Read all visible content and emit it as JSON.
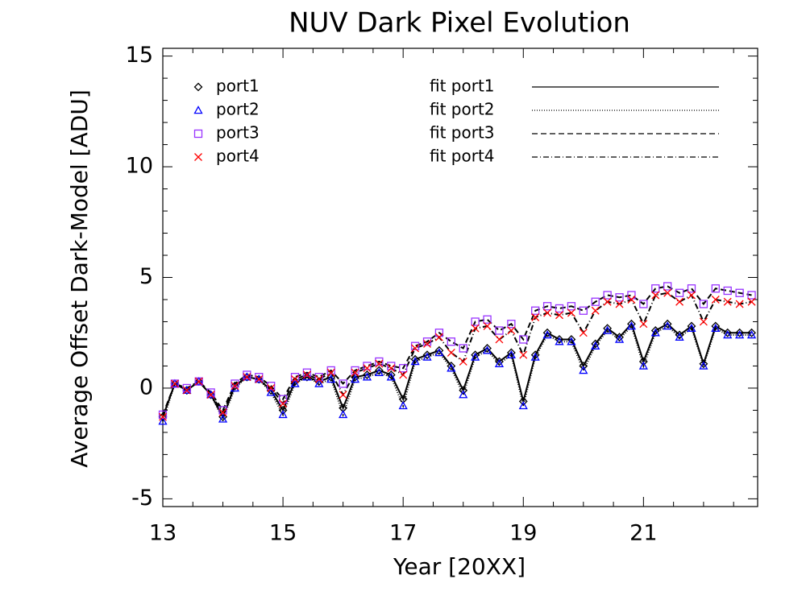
{
  "chart_data": {
    "type": "scatter",
    "title": "NUV Dark Pixel Evolution",
    "xlabel": "Year [20XX]",
    "ylabel": "Average Offset Dark-Model [ADU]",
    "xlim": [
      13,
      22.9
    ],
    "ylim": [
      -5.35,
      15.35
    ],
    "xticks": [
      13,
      15,
      17,
      19,
      21
    ],
    "yticks": [
      -5,
      0,
      5,
      10,
      15
    ],
    "minor_ticks": {
      "x": 4,
      "y": 5
    },
    "x": [
      13.0,
      13.2,
      13.4,
      13.6,
      13.8,
      14.0,
      14.2,
      14.4,
      14.6,
      14.8,
      15.0,
      15.2,
      15.4,
      15.6,
      15.8,
      16.0,
      16.2,
      16.4,
      16.6,
      16.8,
      17.0,
      17.2,
      17.4,
      17.6,
      17.8,
      18.0,
      18.2,
      18.4,
      18.6,
      18.8,
      19.0,
      19.2,
      19.4,
      19.6,
      19.8,
      20.0,
      20.2,
      20.4,
      20.6,
      20.8,
      21.0,
      21.2,
      21.4,
      21.6,
      21.8,
      22.0,
      22.2,
      22.4,
      22.6,
      22.8
    ],
    "series": [
      {
        "name": "port1",
        "marker": "diamond",
        "color": "#000000",
        "values": [
          -1.3,
          0.2,
          -0.1,
          0.3,
          -0.3,
          -1.3,
          0.1,
          0.5,
          0.4,
          -0.1,
          -1.0,
          0.3,
          0.5,
          0.3,
          0.5,
          -0.9,
          0.5,
          0.6,
          0.8,
          0.6,
          -0.5,
          1.3,
          1.5,
          1.7,
          1.0,
          -0.1,
          1.5,
          1.8,
          1.2,
          1.6,
          -0.6,
          1.5,
          2.5,
          2.2,
          2.2,
          1.0,
          2.0,
          2.7,
          2.3,
          2.9,
          1.2,
          2.6,
          2.9,
          2.4,
          2.8,
          1.1,
          2.8,
          2.5,
          2.5,
          2.5
        ]
      },
      {
        "name": "port2",
        "marker": "triangle",
        "color": "#0000ff",
        "values": [
          -1.5,
          0.2,
          -0.1,
          0.3,
          -0.3,
          -1.4,
          0.0,
          0.5,
          0.4,
          -0.2,
          -1.2,
          0.2,
          0.5,
          0.2,
          0.4,
          -1.2,
          0.4,
          0.5,
          0.7,
          0.5,
          -0.8,
          1.2,
          1.4,
          1.6,
          0.9,
          -0.3,
          1.4,
          1.7,
          1.1,
          1.5,
          -0.8,
          1.4,
          2.4,
          2.1,
          2.1,
          0.8,
          1.9,
          2.6,
          2.2,
          2.8,
          1.0,
          2.5,
          2.8,
          2.3,
          2.7,
          1.0,
          2.7,
          2.4,
          2.4,
          2.4
        ]
      },
      {
        "name": "port3",
        "marker": "square",
        "color": "#9933ff",
        "values": [
          -1.2,
          0.2,
          0.0,
          0.3,
          -0.2,
          -1.0,
          0.2,
          0.6,
          0.5,
          0.1,
          -0.5,
          0.5,
          0.7,
          0.5,
          0.8,
          0.2,
          0.8,
          1.0,
          1.2,
          1.0,
          0.9,
          1.9,
          2.1,
          2.5,
          2.1,
          1.8,
          3.0,
          3.1,
          2.6,
          2.9,
          2.2,
          3.5,
          3.7,
          3.6,
          3.7,
          3.5,
          3.9,
          4.2,
          4.1,
          4.2,
          3.8,
          4.5,
          4.6,
          4.3,
          4.5,
          3.8,
          4.5,
          4.4,
          4.3,
          4.2
        ]
      },
      {
        "name": "port4",
        "marker": "x",
        "color": "#ff0000",
        "values": [
          -1.3,
          0.2,
          -0.1,
          0.3,
          -0.3,
          -1.1,
          0.1,
          0.5,
          0.4,
          0.0,
          -0.7,
          0.4,
          0.6,
          0.4,
          0.7,
          -0.3,
          0.7,
          0.9,
          1.1,
          0.9,
          0.6,
          1.8,
          2.0,
          2.3,
          1.6,
          1.2,
          2.7,
          2.8,
          2.2,
          2.6,
          1.5,
          3.2,
          3.4,
          3.3,
          3.4,
          2.5,
          3.5,
          3.9,
          3.8,
          4.0,
          2.9,
          4.2,
          4.3,
          3.9,
          4.2,
          3.0,
          4.0,
          3.9,
          3.8,
          3.9
        ]
      }
    ],
    "fits": [
      {
        "name": "fit port1",
        "dash": "solid",
        "color": "#000000",
        "values": [
          -1.3,
          0.2,
          -0.1,
          0.3,
          -0.3,
          -1.3,
          0.1,
          0.5,
          0.4,
          -0.1,
          -1.0,
          0.3,
          0.5,
          0.3,
          0.5,
          -0.9,
          0.5,
          0.6,
          0.8,
          0.6,
          -0.5,
          1.3,
          1.5,
          1.7,
          1.0,
          -0.1,
          1.5,
          1.8,
          1.2,
          1.6,
          -0.6,
          1.5,
          2.5,
          2.2,
          2.2,
          1.0,
          2.0,
          2.7,
          2.3,
          2.9,
          1.2,
          2.6,
          2.9,
          2.4,
          2.8,
          1.1,
          2.8,
          2.5,
          2.5,
          2.5
        ]
      },
      {
        "name": "fit port2",
        "dash": "dotted",
        "color": "#000000",
        "values": [
          -1.5,
          0.2,
          -0.1,
          0.3,
          -0.3,
          -1.4,
          0.0,
          0.5,
          0.4,
          -0.2,
          -1.2,
          0.2,
          0.5,
          0.2,
          0.4,
          -1.2,
          0.4,
          0.5,
          0.7,
          0.5,
          -0.8,
          1.2,
          1.4,
          1.6,
          0.9,
          -0.3,
          1.4,
          1.7,
          1.1,
          1.5,
          -0.8,
          1.4,
          2.4,
          2.1,
          2.1,
          0.8,
          1.9,
          2.6,
          2.2,
          2.8,
          1.0,
          2.5,
          2.8,
          2.3,
          2.7,
          1.0,
          2.7,
          2.4,
          2.4,
          2.4
        ]
      },
      {
        "name": "fit port3",
        "dash": "dashed",
        "color": "#000000",
        "values": [
          -1.2,
          0.2,
          0.0,
          0.3,
          -0.2,
          -1.0,
          0.2,
          0.6,
          0.5,
          0.1,
          -0.5,
          0.5,
          0.7,
          0.5,
          0.8,
          0.2,
          0.8,
          1.0,
          1.2,
          1.0,
          0.9,
          1.9,
          2.1,
          2.5,
          2.1,
          1.8,
          3.0,
          3.1,
          2.6,
          2.9,
          2.2,
          3.5,
          3.7,
          3.6,
          3.7,
          3.5,
          3.9,
          4.2,
          4.1,
          4.2,
          3.8,
          4.5,
          4.6,
          4.3,
          4.5,
          3.8,
          4.5,
          4.4,
          4.3,
          4.2
        ]
      },
      {
        "name": "fit port4",
        "dash": "dashdot",
        "color": "#000000",
        "values": [
          -1.3,
          0.2,
          -0.1,
          0.3,
          -0.3,
          -1.1,
          0.1,
          0.5,
          0.4,
          0.0,
          -0.7,
          0.4,
          0.6,
          0.4,
          0.7,
          -0.3,
          0.7,
          0.9,
          1.1,
          0.9,
          0.6,
          1.8,
          2.0,
          2.3,
          1.6,
          1.2,
          2.7,
          2.8,
          2.2,
          2.6,
          1.5,
          3.2,
          3.4,
          3.3,
          3.4,
          2.5,
          3.5,
          3.9,
          3.8,
          4.0,
          2.9,
          4.2,
          4.3,
          3.9,
          4.2,
          3.0,
          4.0,
          3.9,
          3.8,
          3.9
        ]
      }
    ]
  }
}
